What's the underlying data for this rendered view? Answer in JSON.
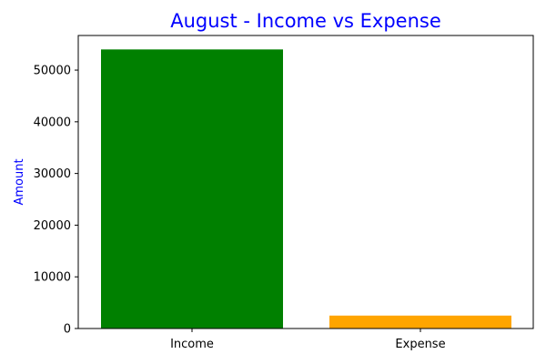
{
  "chart_data": {
    "type": "bar",
    "title": "August - Income vs Expense",
    "xlabel": "",
    "ylabel": "Amount",
    "categories": [
      "Income",
      "Expense"
    ],
    "values": [
      54000,
      2500
    ],
    "bar_colors": [
      "#008000",
      "#ffa500"
    ],
    "title_color": "#0000ff",
    "ylabel_color": "#0000ff",
    "ylim": [
      0,
      56700
    ],
    "yticks": [
      0,
      10000,
      20000,
      30000,
      40000,
      50000
    ],
    "ytick_labels": [
      "0",
      "10000",
      "20000",
      "30000",
      "40000",
      "50000"
    ],
    "grid": false,
    "legend": "none"
  }
}
